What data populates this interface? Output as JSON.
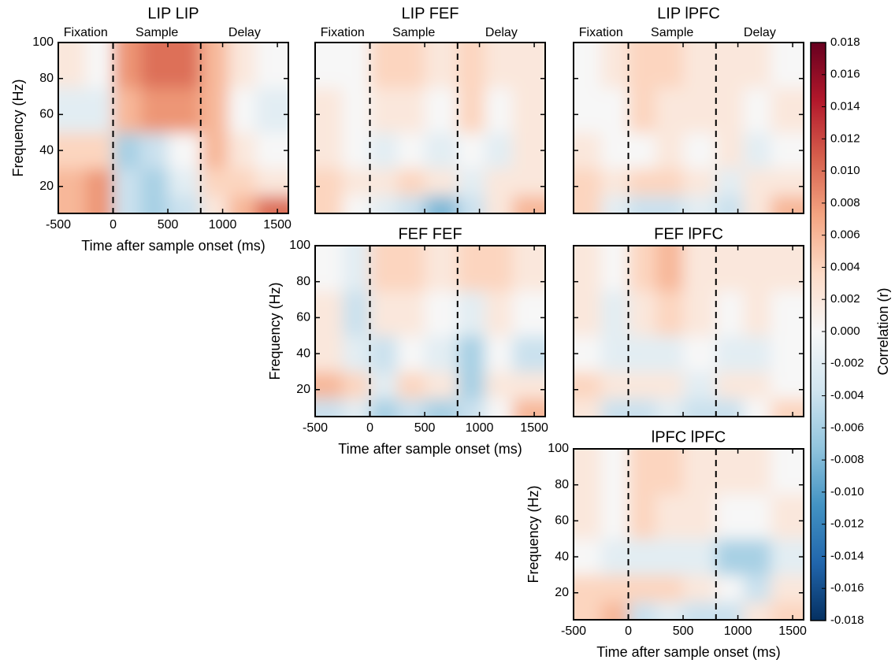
{
  "chart_data": [
    {
      "type": "heatmap",
      "title": "LIP LIP",
      "phases": [
        "Fixation",
        "Sample",
        "Delay"
      ],
      "xlabel": "Time after sample onset (ms)",
      "ylabel": "Frequency (Hz)",
      "xlim": [
        -500,
        1600
      ],
      "xticks": [
        -500,
        0,
        500,
        1000,
        1500
      ],
      "ylim": [
        5,
        100
      ],
      "yticks": [
        20,
        40,
        60,
        80,
        100
      ],
      "events": [
        0,
        800
      ],
      "x_edges": [
        -500,
        -250,
        0,
        250,
        500,
        800,
        1050,
        1300,
        1600
      ],
      "y_edges": [
        5,
        15,
        30,
        50,
        75,
        100
      ],
      "values": [
        [
          0.006,
          0.008,
          -0.004,
          -0.006,
          -0.004,
          0.002,
          0.006,
          0.01
        ],
        [
          0.006,
          0.008,
          -0.004,
          -0.006,
          -0.002,
          0.004,
          0.004,
          0.002
        ],
        [
          0.004,
          0.004,
          -0.006,
          -0.004,
          0.0,
          0.006,
          0.002,
          0.0
        ],
        [
          -0.002,
          -0.002,
          0.006,
          0.008,
          0.008,
          0.006,
          0.0,
          -0.002
        ],
        [
          0.002,
          0.0,
          0.008,
          0.01,
          0.01,
          0.006,
          0.002,
          0.0
        ]
      ]
    },
    {
      "type": "heatmap",
      "title": "LIP FEF",
      "phases": [
        "Fixation",
        "Sample",
        "Delay"
      ],
      "xlim": [
        -500,
        1600
      ],
      "xticks": [
        -500,
        0,
        500,
        1000,
        1500
      ],
      "ylim": [
        5,
        100
      ],
      "yticks": [
        20,
        40,
        60,
        80,
        100
      ],
      "events": [
        0,
        800
      ],
      "x_edges": [
        -500,
        -250,
        0,
        250,
        500,
        800,
        1050,
        1300,
        1600
      ],
      "y_edges": [
        5,
        15,
        30,
        50,
        75,
        100
      ],
      "values": [
        [
          0.004,
          0.0,
          -0.002,
          -0.004,
          -0.008,
          -0.004,
          0.002,
          0.006
        ],
        [
          0.004,
          0.002,
          0.002,
          0.004,
          0.002,
          -0.002,
          0.002,
          0.002
        ],
        [
          0.002,
          0.0,
          -0.002,
          0.0,
          -0.002,
          0.0,
          -0.002,
          0.002
        ],
        [
          0.002,
          0.0,
          0.002,
          0.002,
          0.0,
          0.004,
          0.0,
          0.002
        ],
        [
          0.0,
          0.0,
          0.004,
          0.004,
          0.002,
          0.004,
          0.002,
          0.002
        ]
      ]
    },
    {
      "type": "heatmap",
      "title": "LIP lPFC",
      "phases": [
        "Fixation",
        "Sample",
        "Delay"
      ],
      "xlim": [
        -500,
        1600
      ],
      "xticks": [
        -500,
        0,
        500,
        1000,
        1500
      ],
      "ylim": [
        5,
        100
      ],
      "yticks": [
        20,
        40,
        60,
        80,
        100
      ],
      "events": [
        0,
        800
      ],
      "x_edges": [
        -500,
        -250,
        0,
        250,
        500,
        800,
        1050,
        1300,
        1600
      ],
      "y_edges": [
        5,
        15,
        30,
        50,
        75,
        100
      ],
      "values": [
        [
          0.004,
          -0.002,
          -0.004,
          -0.004,
          -0.002,
          -0.004,
          0.002,
          0.006
        ],
        [
          0.004,
          0.002,
          0.004,
          0.004,
          0.002,
          -0.002,
          0.002,
          0.002
        ],
        [
          0.002,
          0.0,
          0.0,
          0.002,
          0.0,
          0.002,
          -0.002,
          0.0
        ],
        [
          0.0,
          0.0,
          0.004,
          0.002,
          0.002,
          0.002,
          0.0,
          0.002
        ],
        [
          0.0,
          0.002,
          0.004,
          0.004,
          0.002,
          0.002,
          0.002,
          0.0
        ]
      ]
    },
    {
      "type": "heatmap",
      "title": "FEF FEF",
      "xlabel": "Time after sample onset (ms)",
      "ylabel": "Frequency (Hz)",
      "xlim": [
        -500,
        1600
      ],
      "xticks": [
        -500,
        0,
        500,
        1000,
        1500
      ],
      "ylim": [
        5,
        100
      ],
      "yticks": [
        20,
        40,
        60,
        80,
        100
      ],
      "events": [
        0,
        800
      ],
      "x_edges": [
        -500,
        -250,
        0,
        250,
        500,
        800,
        1050,
        1300,
        1600
      ],
      "y_edges": [
        5,
        15,
        30,
        50,
        75,
        100
      ],
      "values": [
        [
          -0.004,
          -0.002,
          -0.006,
          -0.004,
          -0.006,
          -0.004,
          0.0,
          0.006
        ],
        [
          0.006,
          0.004,
          -0.002,
          0.004,
          0.002,
          -0.006,
          0.002,
          0.002
        ],
        [
          0.002,
          -0.002,
          -0.004,
          0.0,
          -0.002,
          -0.006,
          0.0,
          -0.004
        ],
        [
          0.002,
          -0.004,
          0.002,
          0.002,
          0.0,
          -0.002,
          0.002,
          0.0
        ],
        [
          0.0,
          -0.002,
          0.004,
          0.004,
          0.002,
          0.004,
          0.004,
          0.002
        ]
      ]
    },
    {
      "type": "heatmap",
      "title": "FEF lPFC",
      "xlim": [
        -500,
        1600
      ],
      "xticks": [
        -500,
        0,
        500,
        1000,
        1500
      ],
      "ylim": [
        5,
        100
      ],
      "yticks": [
        20,
        40,
        60,
        80,
        100
      ],
      "events": [
        0,
        800
      ],
      "x_edges": [
        -500,
        -250,
        0,
        250,
        500,
        800,
        1050,
        1300,
        1600
      ],
      "y_edges": [
        5,
        15,
        30,
        50,
        75,
        100
      ],
      "values": [
        [
          0.002,
          -0.004,
          -0.004,
          -0.002,
          -0.004,
          -0.004,
          0.0,
          0.004
        ],
        [
          0.004,
          0.002,
          0.002,
          0.002,
          -0.002,
          0.002,
          0.002,
          0.0
        ],
        [
          0.0,
          -0.002,
          -0.002,
          -0.002,
          0.0,
          -0.002,
          -0.002,
          0.0
        ],
        [
          0.002,
          -0.002,
          0.002,
          0.004,
          0.002,
          0.0,
          0.002,
          0.0
        ],
        [
          0.002,
          0.0,
          0.004,
          0.006,
          0.002,
          0.002,
          0.002,
          0.002
        ]
      ]
    },
    {
      "type": "heatmap",
      "title": "lPFC lPFC",
      "xlabel": "Time after sample onset (ms)",
      "ylabel": "Frequency (Hz)",
      "xlim": [
        -500,
        1600
      ],
      "xticks": [
        -500,
        0,
        500,
        1000,
        1500
      ],
      "ylim": [
        5,
        100
      ],
      "yticks": [
        20,
        40,
        60,
        80,
        100
      ],
      "events": [
        0,
        800
      ],
      "x_edges": [
        -500,
        -250,
        0,
        250,
        500,
        800,
        1050,
        1300,
        1600
      ],
      "y_edges": [
        5,
        15,
        30,
        50,
        75,
        100
      ],
      "values": [
        [
          0.004,
          0.006,
          -0.004,
          -0.002,
          -0.004,
          -0.004,
          0.002,
          0.004
        ],
        [
          0.004,
          0.004,
          0.004,
          0.004,
          0.002,
          0.0,
          -0.004,
          0.002
        ],
        [
          0.0,
          -0.002,
          -0.002,
          -0.002,
          -0.002,
          -0.006,
          -0.006,
          -0.002
        ],
        [
          0.002,
          0.0,
          0.004,
          0.002,
          0.002,
          0.0,
          0.0,
          0.002
        ],
        [
          0.002,
          0.0,
          0.004,
          0.004,
          0.002,
          0.002,
          0.002,
          0.0
        ]
      ]
    }
  ],
  "colorbar": {
    "label": "Correlation (r)",
    "clim": [
      -0.018,
      0.018
    ],
    "colors": [
      "#053061",
      "#2166ac",
      "#4393c3",
      "#92c5de",
      "#d1e5f0",
      "#f7f7f7",
      "#fddbc7",
      "#f4a582",
      "#d6604d",
      "#b2182b",
      "#67001f"
    ],
    "ticks": [
      0.018,
      0.016,
      0.014,
      0.012,
      {
        "value": 0.01,
        "label": "0.010"
      },
      0.008,
      0.006,
      0.004,
      0.002,
      {
        "value": 0,
        "label": "0.000"
      },
      -0.002,
      -0.004,
      -0.006,
      -0.008,
      {
        "value": -0.01,
        "label": "-0.010"
      },
      -0.012,
      -0.014,
      -0.016,
      -0.018
    ]
  }
}
